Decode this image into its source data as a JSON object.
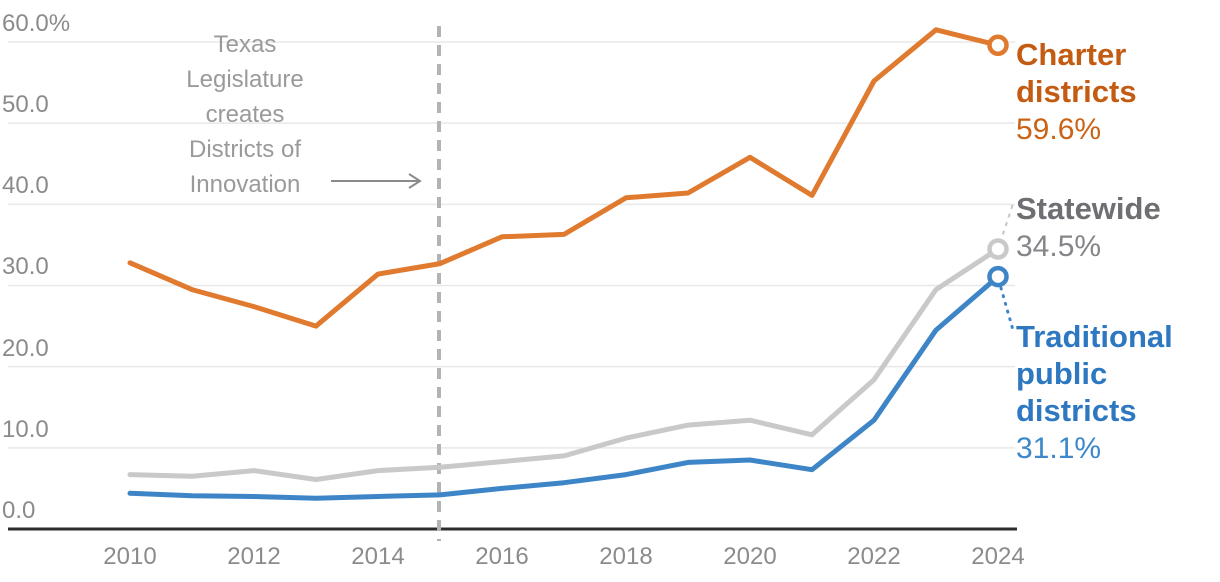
{
  "chart_data": {
    "type": "line",
    "x": [
      2010,
      2011,
      2012,
      2013,
      2014,
      2015,
      2016,
      2017,
      2018,
      2019,
      2020,
      2021,
      2022,
      2023,
      2024
    ],
    "x_axis_tick_labels": [
      "2010",
      "2012",
      "2014",
      "2016",
      "2018",
      "2020",
      "2022",
      "2024"
    ],
    "y_axis_ticks": [
      {
        "value": 60,
        "label": "60.0%"
      },
      {
        "value": 50,
        "label": "50.0"
      },
      {
        "value": 40,
        "label": "40.0"
      },
      {
        "value": 30,
        "label": "30.0"
      },
      {
        "value": 20,
        "label": "20.0"
      },
      {
        "value": 10,
        "label": "10.0"
      },
      {
        "value": 0,
        "label": "0.0"
      }
    ],
    "ylim": [
      0,
      62
    ],
    "xlim": [
      2010,
      2024
    ],
    "grid": "horizontal",
    "legend_position": "right-end-labels",
    "series": [
      {
        "name": "Charter districts",
        "values": [
          32.8,
          29.5,
          27.4,
          25.0,
          31.4,
          32.7,
          36.0,
          36.3,
          40.8,
          41.4,
          45.8,
          41.1,
          55.2,
          61.5,
          59.6
        ],
        "line_color": "#e07a2e",
        "label_lines": [
          "Charter",
          "districts"
        ],
        "label_color": "#c35c12",
        "end_value_label": "59.6%",
        "value_color": "#ca6315"
      },
      {
        "name": "Statewide",
        "values": [
          6.7,
          6.5,
          7.2,
          6.1,
          7.2,
          7.6,
          8.3,
          9.0,
          11.2,
          12.8,
          13.4,
          11.6,
          18.4,
          29.5,
          34.5
        ],
        "line_color": "#c9c9c9",
        "label_lines": [
          "Statewide"
        ],
        "label_color": "#6f6f73",
        "end_value_label": "34.5%",
        "value_color": "#86868a"
      },
      {
        "name": "Traditional public districts",
        "values": [
          4.4,
          4.1,
          4.0,
          3.8,
          4.0,
          4.2,
          5.0,
          5.7,
          6.7,
          8.2,
          8.5,
          7.3,
          13.4,
          24.5,
          31.1
        ],
        "line_color": "#3d85c6",
        "label_lines": [
          "Traditional",
          "public",
          "districts"
        ],
        "label_color": "#2e78c2",
        "end_value_label": "31.1%",
        "value_color": "#3d88cb"
      }
    ],
    "annotation": {
      "lines": [
        "Texas",
        "Legislature",
        "creates",
        "Districts of",
        "Innovation"
      ],
      "target_year": 2015
    }
  },
  "colors": {
    "background": "#ffffff",
    "axis_line": "#2d2d2d",
    "gridline": "#e8e8e8",
    "tick_label": "#8b8b8b",
    "annotation_text": "#9a9a9a",
    "event_dashed_line": "#b3b3b3",
    "arrow": "#8a8a8a"
  }
}
